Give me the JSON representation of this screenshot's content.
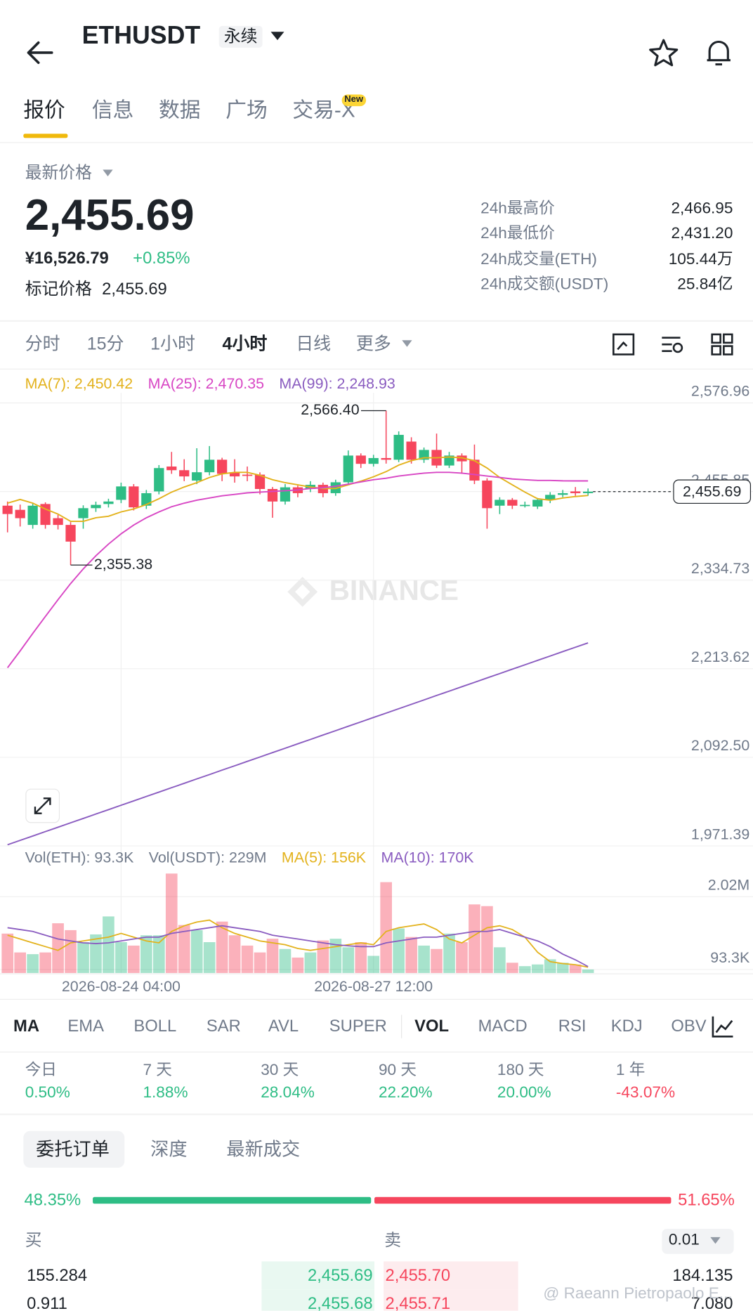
{
  "header": {
    "title": "ETHUSDT",
    "tag": "永续"
  },
  "tabs": {
    "items": [
      "报价",
      "信息",
      "数据",
      "广场",
      "交易-X"
    ],
    "badge": "New"
  },
  "quote": {
    "label": "最新价格",
    "price": "2,455.69",
    "cny": "¥16,526.79",
    "change": "+0.85%",
    "mark_label": "标记价格",
    "mark_price": "2,455.69"
  },
  "stats": [
    [
      "24h最高价",
      "2,466.95"
    ],
    [
      "24h最低价",
      "2,431.20"
    ],
    [
      "24h成交量(ETH)",
      "105.44万"
    ],
    [
      "24h成交额(USDT)",
      "25.84亿"
    ]
  ],
  "intervals": [
    "分时",
    "15分",
    "1小时",
    "4小时",
    "日线",
    "更多"
  ],
  "chart_data": [
    {
      "type": "candlestick",
      "categories": [
        null,
        null,
        null,
        null,
        null,
        null,
        null,
        null,
        null,
        "2026-08-24 04:00",
        null,
        null,
        null,
        null,
        null,
        null,
        null,
        null,
        null,
        null,
        null,
        null,
        null,
        null,
        null,
        null,
        null,
        null,
        null,
        "2026-08-27 12:00",
        null,
        null,
        null,
        null,
        null,
        null,
        null,
        null,
        null,
        null,
        null,
        null,
        null,
        null,
        null,
        null,
        null
      ],
      "open": [
        2436.5,
        2430.8,
        2410.2,
        2438.8,
        2419.4,
        2410.2,
        2419.4,
        2433.1,
        2438.8,
        2444.5,
        2462.8,
        2436.5,
        2456.0,
        2490.0,
        2485.0,
        2470.8,
        2482.2,
        2499.3,
        2482.2,
        2478.9,
        2478.9,
        2459.3,
        2442.2,
        2461.6,
        2459.3,
        2465.0,
        2453.6,
        2468.5,
        2505.0,
        2493.7,
        2501.6,
        2499.3,
        2524.1,
        2499.3,
        2512.7,
        2491.4,
        2505.0,
        2499.3,
        2470.8,
        2436.5,
        2444.5,
        2437.6,
        2435.3,
        2444.5,
        2451.3,
        2456.0,
        2453.6
      ],
      "high": [
        2442.2,
        2438,
        2440,
        2441,
        2424,
        2414,
        2437,
        2442,
        2446,
        2468,
        2466,
        2458,
        2492,
        2510,
        2500,
        2515,
        2518,
        2502,
        2500,
        2490,
        2482,
        2462,
        2466,
        2464,
        2470,
        2468,
        2472,
        2512,
        2508,
        2506,
        2566.4,
        2538,
        2530,
        2516,
        2535,
        2510,
        2508,
        2520,
        2474,
        2448,
        2447,
        2442,
        2447,
        2455,
        2458,
        2462,
        2460
      ],
      "low": [
        2400,
        2408,
        2405,
        2405,
        2404,
        2355.38,
        2405,
        2428,
        2434,
        2440,
        2430,
        2432,
        2452,
        2480,
        2470,
        2466,
        2478,
        2470,
        2468,
        2470,
        2452,
        2420,
        2438,
        2448,
        2455,
        2448,
        2450,
        2465,
        2488,
        2490,
        2494,
        2496,
        2494,
        2495,
        2488,
        2488,
        2480,
        2466,
        2405,
        2425,
        2432,
        2434,
        2432,
        2440,
        2448,
        2450,
        2450
      ],
      "close": [
        2425.1,
        2419.4,
        2436.5,
        2410.2,
        2410.2,
        2387.4,
        2433.1,
        2437.6,
        2442.2,
        2462.8,
        2434.2,
        2453.6,
        2487.9,
        2485.0,
        2476.5,
        2482.2,
        2499.3,
        2480.0,
        2476.5,
        2478.0,
        2459.3,
        2442.2,
        2461.6,
        2453.6,
        2465.0,
        2453.6,
        2468.5,
        2505.0,
        2493.7,
        2501.6,
        2499.3,
        2533.3,
        2499.3,
        2512.7,
        2491.4,
        2505.0,
        2497.1,
        2470.8,
        2433.1,
        2444.5,
        2436.5,
        2437.6,
        2444.5,
        2451.3,
        2453.6,
        2453.6,
        2455.69
      ],
      "up_color": "#2ebd85",
      "down_color": "#f6465d",
      "series": [
        {
          "name": "MA(7): 2,450.42",
          "color": "#e3b21c",
          "values": [
            2440,
            2445,
            2440,
            2432,
            2425,
            2415,
            2415,
            2420,
            2422,
            2428,
            2432,
            2438,
            2446,
            2455,
            2462,
            2468,
            2475,
            2480,
            2482,
            2482,
            2478,
            2472,
            2468,
            2465,
            2462,
            2460,
            2460,
            2465,
            2470,
            2476,
            2483,
            2492,
            2498,
            2502,
            2502,
            2503,
            2502,
            2498,
            2488,
            2475,
            2465,
            2455,
            2446,
            2444,
            2447,
            2449,
            2450.42
          ]
        },
        {
          "name": "MA(25): 2,470.35",
          "color": "#d846c4",
          "values": [
            2215,
            2238,
            2262,
            2285,
            2308,
            2330,
            2350,
            2368,
            2384,
            2398,
            2410,
            2420,
            2428,
            2435,
            2440,
            2444,
            2447,
            2450,
            2452,
            2454,
            2455,
            2456,
            2457,
            2458,
            2460,
            2461,
            2463,
            2466,
            2469,
            2472,
            2474,
            2477,
            2479,
            2481,
            2482,
            2482,
            2481,
            2479,
            2477,
            2475,
            2473,
            2472,
            2471,
            2471,
            2470.5,
            2470.4,
            2470.35
          ]
        },
        {
          "name": "MA(99): 2,248.93",
          "color": "#8a5cc0",
          "values": [
            1973,
            1979,
            1985,
            1991,
            1997,
            2003,
            2009,
            2015,
            2021,
            2027,
            2033,
            2039,
            2045,
            2051,
            2057,
            2063,
            2069,
            2075,
            2081,
            2087,
            2093,
            2099,
            2105,
            2111,
            2117,
            2123,
            2129,
            2135,
            2141,
            2147,
            2153,
            2159,
            2165,
            2171,
            2177,
            2183,
            2189,
            2195,
            2201,
            2207,
            2213,
            2219,
            2225,
            2231,
            2237,
            2243,
            2248.93
          ]
        }
      ],
      "ylim": [
        1971.39,
        2576.96
      ],
      "yticks": [
        {
          "value": 1971.39,
          "label": "1,971.39"
        },
        {
          "value": 2092.5,
          "label": "2,092.50"
        },
        {
          "value": 2213.62,
          "label": "2,213.62"
        },
        {
          "value": 2334.73,
          "label": "2,334.73"
        },
        {
          "value": 2455.85,
          "label": "2,455.85"
        },
        {
          "value": 2576.96,
          "label": "2,576.96"
        }
      ],
      "grid": true,
      "annotations": {
        "high": "2,566.40",
        "low": "2,355.38",
        "last": "2,455.69"
      },
      "watermark": "BINANCE"
    },
    {
      "type": "bar",
      "legend": [
        "Vol(ETH): 93.3K",
        "Vol(USDT): 229M"
      ],
      "values": [
        1044000,
        545000,
        499000,
        545000,
        1317000,
        1135000,
        817000,
        1022000,
        1498000,
        817000,
        726000,
        999000,
        999000,
        2633000,
        1271000,
        1135000,
        817000,
        1362000,
        999000,
        726000,
        545000,
        908000,
        636000,
        409000,
        545000,
        863000,
        908000,
        681000,
        817000,
        454000,
        2406000,
        1180000,
        953000,
        726000,
        636000,
        1044000,
        817000,
        1816000,
        1771000,
        681000,
        272000,
        182000,
        227000,
        363000,
        272000,
        227000,
        93300
      ],
      "series": [
        {
          "name": "MA(5): 156K",
          "color": "#e3b21c",
          "values": [
            1000000,
            900000,
            800000,
            700000,
            600000,
            800000,
            850000,
            900000,
            950000,
            1050000,
            950000,
            850000,
            800000,
            1100000,
            1250000,
            1350000,
            1400000,
            1200000,
            1050000,
            950000,
            850000,
            800000,
            750000,
            650000,
            600000,
            650000,
            700000,
            750000,
            800000,
            750000,
            1100000,
            1200000,
            1250000,
            1300000,
            1150000,
            900000,
            800000,
            1000000,
            1200000,
            1250000,
            1150000,
            950000,
            550000,
            300000,
            250000,
            220000,
            156000
          ]
        },
        {
          "name": "MA(10): 170K",
          "color": "#8a5cc0",
          "values": [
            1200000,
            1150000,
            1100000,
            1000000,
            900000,
            850000,
            800000,
            780000,
            800000,
            850000,
            900000,
            950000,
            950000,
            1050000,
            1100000,
            1150000,
            1200000,
            1250000,
            1200000,
            1150000,
            1100000,
            1000000,
            950000,
            900000,
            850000,
            800000,
            750000,
            720000,
            700000,
            700000,
            800000,
            850000,
            900000,
            950000,
            950000,
            1000000,
            1050000,
            1100000,
            1100000,
            1150000,
            1050000,
            950000,
            850000,
            700000,
            500000,
            350000,
            170000
          ]
        }
      ],
      "ylim": [
        0,
        2700000
      ],
      "yticks": [
        {
          "value": 93300,
          "label": "93.3K"
        },
        {
          "value": 2020000,
          "label": "2.02M"
        }
      ]
    }
  ],
  "indicators": [
    "MA",
    "EMA",
    "BOLL",
    "SAR",
    "AVL",
    "SUPER",
    "VOL",
    "MACD",
    "RSI",
    "KDJ",
    "OBV"
  ],
  "performance": [
    [
      "今日",
      "0.50%"
    ],
    [
      "7 天",
      "1.88%"
    ],
    [
      "30 天",
      "28.04%"
    ],
    [
      "90 天",
      "22.20%"
    ],
    [
      "180 天",
      "20.00%"
    ],
    [
      "1 年",
      "-43.07%"
    ]
  ],
  "order_book": {
    "tabs": [
      "委托订单",
      "深度",
      "最新成交"
    ],
    "ratio": {
      "values": [
        48.35,
        51.65
      ],
      "value_labels": [
        "48.35%",
        "51.65%"
      ]
    },
    "buy_label": "买",
    "sell_label": "卖",
    "precision": "0.01",
    "rows": [
      [
        "155.284",
        "2,455.69",
        "2,455.70",
        "184.135"
      ],
      [
        "0.911",
        "2,455.68",
        "2,455.71",
        "7.080"
      ]
    ]
  },
  "footer": {
    "watermark": "@ Raeann Pietropaolo E..."
  }
}
